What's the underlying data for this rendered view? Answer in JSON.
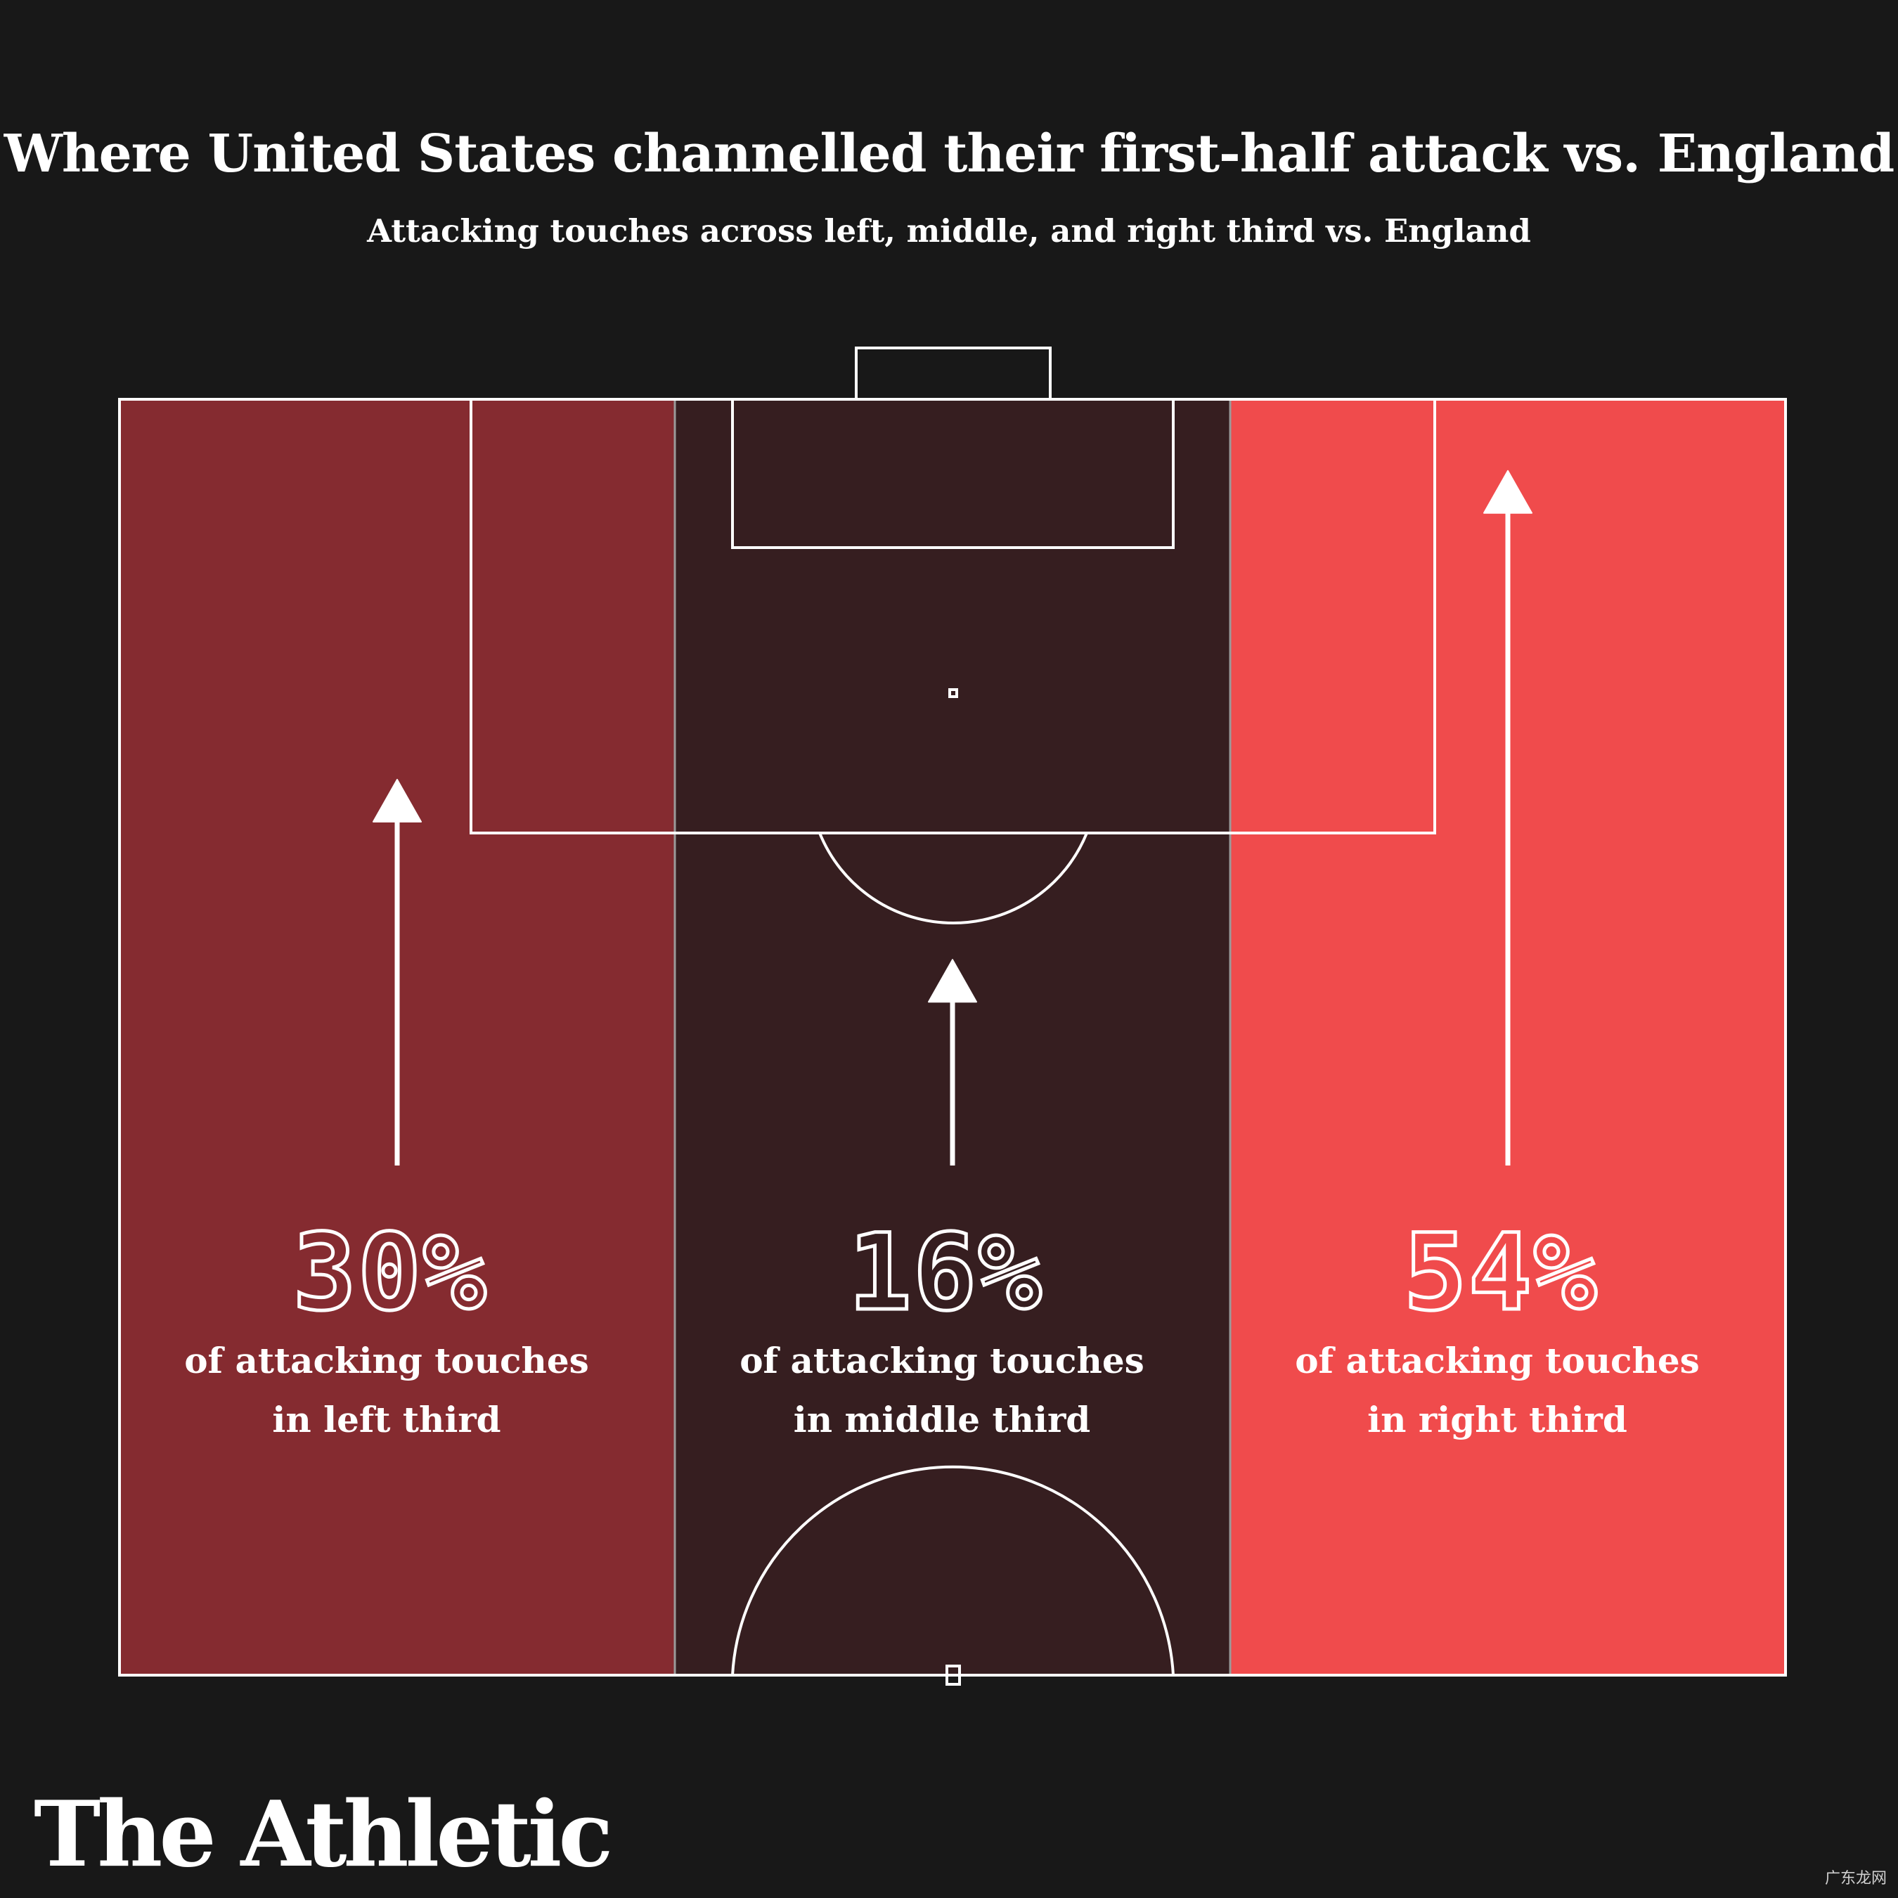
{
  "title": "Where United States channelled their first-half attack vs. England",
  "subtitle": "Attacking touches across left, middle, and right third vs. England",
  "brand": "The Athletic",
  "watermark": "广东龙网",
  "chart_data": {
    "type": "bar",
    "categories": [
      "left third",
      "middle third",
      "right third"
    ],
    "values": [
      30,
      16,
      54
    ],
    "value_labels": [
      "30%",
      "16%",
      "54%"
    ],
    "descriptions": [
      [
        "of attacking touches",
        "in left third"
      ],
      [
        "of attacking touches",
        "in middle third"
      ],
      [
        "of attacking touches",
        "in right third"
      ]
    ],
    "unit": "%",
    "colors": [
      "#852B30",
      "#361E20",
      "#F04B4C"
    ],
    "background": "#181818"
  }
}
